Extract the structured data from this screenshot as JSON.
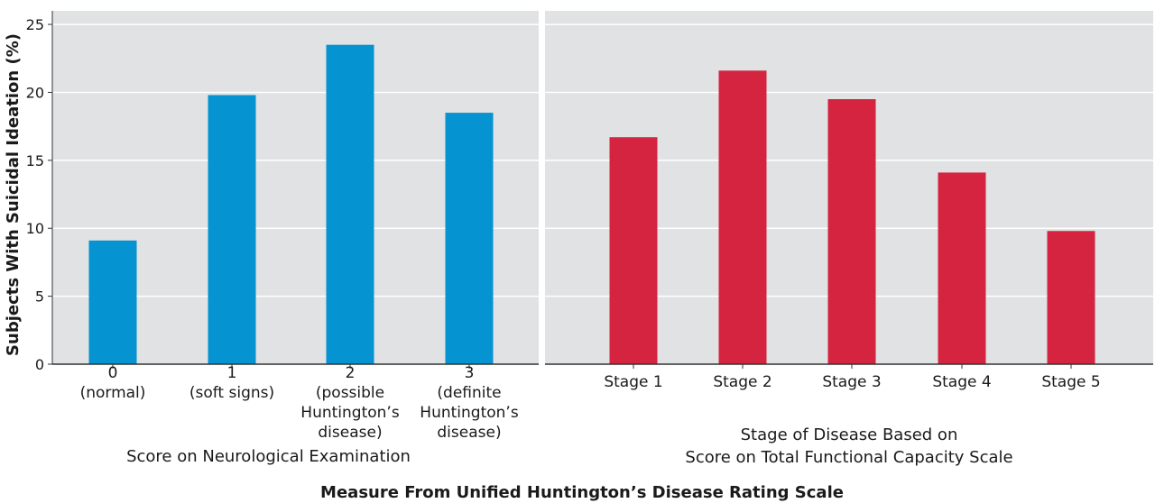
{
  "figure": {
    "ylabel": "Subjects With Suicidal Ideation (%)",
    "overall_xlabel": "Measure From Unified Huntington’s Disease Rating Scale"
  },
  "colors": {
    "panel_bg": "#e0e2e3",
    "grid": "#ffffff",
    "left_bar": "#0693d2",
    "right_bar": "#d42440",
    "axis": "#333333"
  },
  "chart_data": [
    {
      "type": "bar",
      "categories": [
        "0\n(normal)",
        "1\n(soft signs)",
        "2\n(possible\nHuntington’s\ndisease)",
        "3\n(definite\nHuntington’s\ndisease)"
      ],
      "values": [
        9.1,
        19.8,
        23.5,
        18.5
      ],
      "xlabel": "Score on Neurological Examination",
      "ylabel": "Subjects With Suicidal Ideation (%)",
      "ylim": [
        0,
        26
      ],
      "yticks": [
        0,
        5,
        10,
        15,
        20,
        25
      ],
      "grid": true
    },
    {
      "type": "bar",
      "categories": [
        "Stage 1",
        "Stage 2",
        "Stage 3",
        "Stage 4",
        "Stage 5"
      ],
      "values": [
        16.7,
        21.6,
        19.5,
        14.1,
        9.8
      ],
      "xlabel": "Stage of Disease Based on\nScore on Total Functional Capacity Scale",
      "ylim": [
        0,
        26
      ],
      "grid": true
    }
  ]
}
